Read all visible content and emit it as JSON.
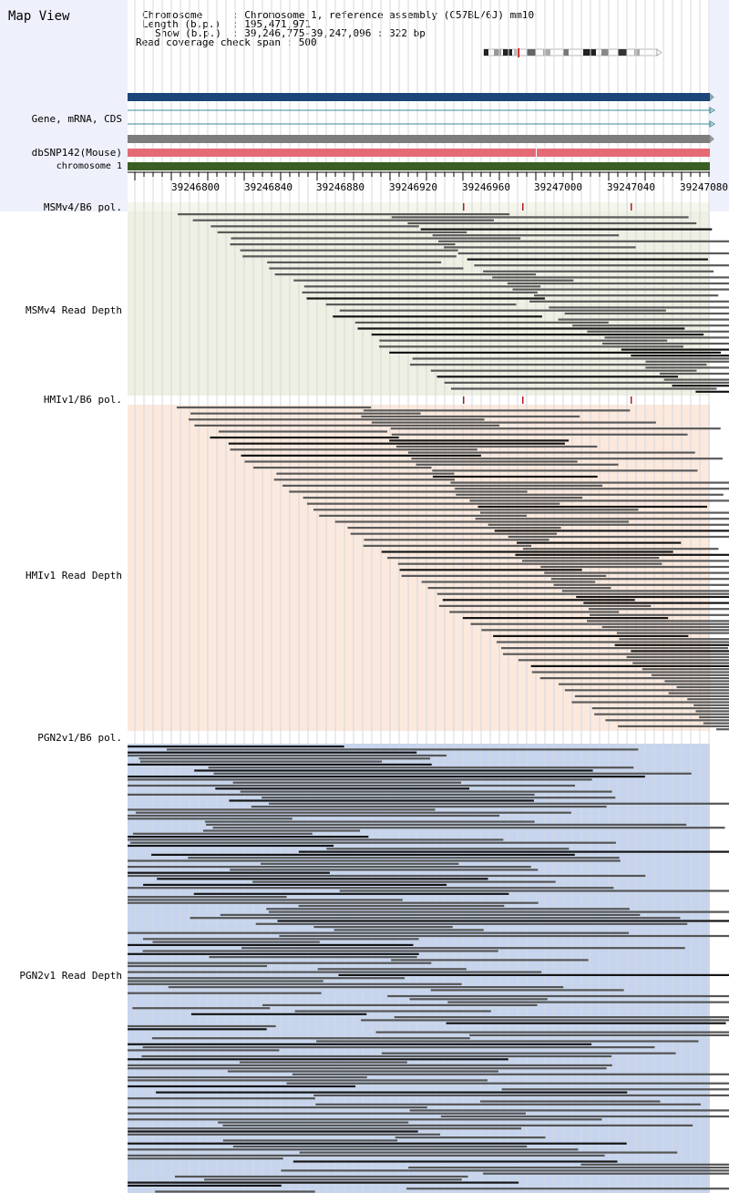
{
  "title": "Map View",
  "info": {
    "chromosome_key": "Chromosome",
    "chromosome_val": ": Chromosome 1, reference assembly (C57BL/6J) mm10",
    "length_key": "Length (b.p.)",
    "length_val": ": 195,471,971",
    "show_key": "Show (b.p.)",
    "show_val": ": 39,246,775-39,247,096 : 322 bp",
    "span_text": "Read coverage check span : 500"
  },
  "tracks": {
    "gene": "Gene, mRNA, CDS",
    "dbsnp": "dbSNP142(Mouse)",
    "chrom": "chromosome 1",
    "msm_pol": "MSMv4/B6 pol.",
    "msm_depth": "MSMv4 Read Depth",
    "hmi_pol": "HMIv1/B6 pol.",
    "hmi_depth": "HMIv1 Read Depth",
    "pgn_pol": "PGN2v1/B6 pol.",
    "pgn_depth": "PGN2v1 Read Depth"
  },
  "ruler": {
    "labels": [
      "39246800",
      "39246840",
      "39246880",
      "39246920",
      "39246960",
      "39247000",
      "39247040",
      "39247080"
    ]
  },
  "colors": {
    "msm_bg": "#edf0e2",
    "hmi_bg": "#fbe9dd",
    "pgn_bg": "#c6d5ed",
    "gene_bar": "#1c4579",
    "snp_bar": "#e46a76",
    "chrom_bar": "#3a5f24"
  }
}
